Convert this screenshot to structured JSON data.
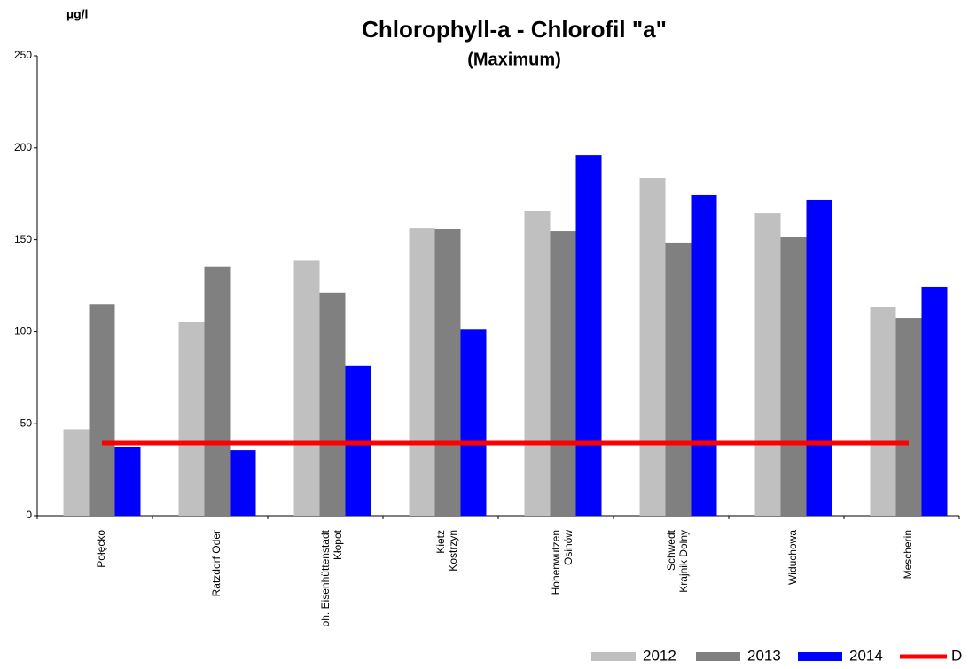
{
  "chart_data": {
    "type": "bar",
    "title": "Chlorophyll-a - Chlorofil \"a\"",
    "subtitle": "(Maximum)",
    "y_label": "µg/l",
    "categories": [
      [
        "Połęcko"
      ],
      [
        "Ratzdorf Oder"
      ],
      [
        "oh. Eisenhüttenstadt",
        "Kłopot"
      ],
      [
        "Kietz",
        "Kostrzyn"
      ],
      [
        "Hohenwutzen",
        "Osinów"
      ],
      [
        "Schwedt",
        "Krajnik Dolny"
      ],
      [
        "Widuchowa"
      ],
      [
        "Mescherin"
      ]
    ],
    "series": [
      {
        "name": "2012",
        "color": "#c0c0c0",
        "values": [
          47,
          105.5,
          139,
          156.5,
          165.7,
          183.5,
          164.7,
          113.2
        ]
      },
      {
        "name": "2013",
        "color": "#808080",
        "values": [
          115,
          135.5,
          121,
          156,
          154.6,
          148.4,
          151.7,
          107.4
        ]
      },
      {
        "name": "2014",
        "color": "#0000ff",
        "values": [
          37.5,
          35.6,
          81.5,
          101.5,
          196,
          174.4,
          171.5,
          124.3
        ]
      },
      {
        "name": "D",
        "type": "line",
        "color": "#ff0000",
        "values": [
          39.5,
          39.5,
          39.5,
          39.5,
          39.5,
          39.5,
          39.5,
          39.5
        ]
      }
    ],
    "ylim": [
      0,
      250
    ],
    "yticks": [
      0,
      50,
      100,
      150,
      200,
      250
    ],
    "grid": false,
    "legend": "bottom-right"
  }
}
